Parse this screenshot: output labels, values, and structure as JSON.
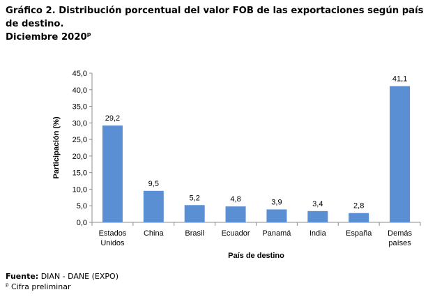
{
  "title": {
    "line1": "Gráfico 2. Distribución porcentual del valor FOB de las exportaciones según país de destino.",
    "line2": "Diciembre 2020",
    "line2_sup": "p"
  },
  "footer": {
    "source_label": "Fuente:",
    "source_value": " DIAN - DANE (EXPO)",
    "note_sup": "p",
    "note_text": " Cifra preliminar"
  },
  "chart_data": {
    "type": "bar",
    "categories": [
      [
        "Estados",
        "Unidos"
      ],
      [
        "China"
      ],
      [
        "Brasil"
      ],
      [
        "Ecuador"
      ],
      [
        "Panamá"
      ],
      [
        "India"
      ],
      [
        "España"
      ],
      [
        "Demás",
        "países"
      ]
    ],
    "values": [
      29.2,
      9.5,
      5.2,
      4.8,
      3.9,
      3.4,
      2.8,
      41.1
    ],
    "data_labels": [
      "29,2",
      "9,5",
      "5,2",
      "4,8",
      "3,9",
      "3,4",
      "2,8",
      "41,1"
    ],
    "ylim": [
      0,
      45
    ],
    "yticks": [
      0,
      5,
      10,
      15,
      20,
      25,
      30,
      35,
      40,
      45
    ],
    "ytick_labels": [
      "0,0",
      "5,0",
      "10,0",
      "15,0",
      "20,0",
      "25,0",
      "30,0",
      "35,0",
      "40,0",
      "45,0"
    ],
    "xlabel": "País de destino",
    "ylabel": "Participación (%)",
    "bar_color": "#5b8fd4",
    "grid": false
  }
}
